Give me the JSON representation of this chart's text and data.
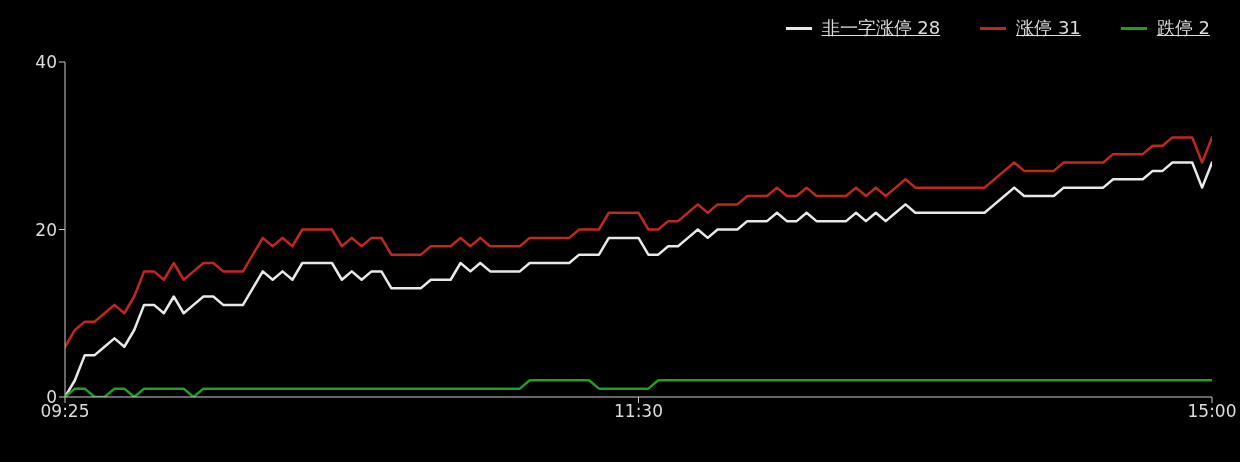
{
  "chart_data": {
    "type": "line",
    "legend": "top right",
    "marker": "none",
    "line_style": "solid",
    "ylim": [
      0,
      40
    ],
    "yticks": [
      0,
      20,
      40
    ],
    "categories": [
      "09:25",
      null,
      null,
      null,
      null,
      null,
      null,
      null,
      null,
      null,
      null,
      null,
      null,
      null,
      null,
      null,
      null,
      null,
      null,
      null,
      null,
      null,
      null,
      null,
      null,
      null,
      null,
      null,
      null,
      null,
      null,
      null,
      null,
      null,
      null,
      null,
      null,
      null,
      null,
      null,
      null,
      null,
      null,
      null,
      null,
      null,
      null,
      null,
      null,
      null,
      null,
      null,
      null,
      null,
      null,
      null,
      null,
      null,
      "11:30",
      null,
      null,
      null,
      null,
      null,
      null,
      null,
      null,
      null,
      null,
      null,
      null,
      null,
      null,
      null,
      null,
      null,
      null,
      null,
      null,
      null,
      null,
      null,
      null,
      null,
      null,
      null,
      null,
      null,
      null,
      null,
      null,
      null,
      null,
      null,
      null,
      null,
      null,
      null,
      null,
      null,
      null,
      null,
      null,
      null,
      null,
      null,
      null,
      null,
      null,
      null,
      null,
      null,
      null,
      null,
      null,
      null,
      "15:00"
    ],
    "series": [
      {
        "name": "非一字涨停 28",
        "color": "#e8e8e8",
        "values": [
          0,
          2,
          5,
          5,
          6,
          7,
          6,
          8,
          11,
          11,
          10,
          12,
          10,
          11,
          12,
          12,
          11,
          11,
          11,
          13,
          15,
          14,
          15,
          14,
          16,
          16,
          16,
          16,
          14,
          15,
          14,
          15,
          15,
          13,
          13,
          13,
          13,
          14,
          14,
          14,
          16,
          15,
          16,
          15,
          15,
          15,
          15,
          16,
          16,
          16,
          16,
          16,
          17,
          17,
          17,
          19,
          19,
          19,
          19,
          17,
          17,
          18,
          18,
          19,
          20,
          19,
          20,
          20,
          20,
          21,
          21,
          21,
          22,
          21,
          21,
          22,
          21,
          21,
          21,
          21,
          22,
          21,
          22,
          21,
          22,
          23,
          22,
          22,
          22,
          22,
          22,
          22,
          22,
          22,
          23,
          24,
          25,
          24,
          24,
          24,
          24,
          25,
          25,
          25,
          25,
          25,
          26,
          26,
          26,
          26,
          27,
          27,
          28,
          28,
          28,
          25,
          28
        ]
      },
      {
        "name": "涨停 31",
        "color": "#c0281e",
        "values": [
          6,
          8,
          9,
          9,
          10,
          11,
          10,
          12,
          15,
          15,
          14,
          16,
          14,
          15,
          16,
          16,
          15,
          15,
          15,
          17,
          19,
          18,
          19,
          18,
          20,
          20,
          20,
          20,
          18,
          19,
          18,
          19,
          19,
          17,
          17,
          17,
          17,
          18,
          18,
          18,
          19,
          18,
          19,
          18,
          18,
          18,
          18,
          19,
          19,
          19,
          19,
          19,
          20,
          20,
          20,
          22,
          22,
          22,
          22,
          20,
          20,
          21,
          21,
          22,
          23,
          22,
          23,
          23,
          23,
          24,
          24,
          24,
          25,
          24,
          24,
          25,
          24,
          24,
          24,
          24,
          25,
          24,
          25,
          24,
          25,
          26,
          25,
          25,
          25,
          25,
          25,
          25,
          25,
          25,
          26,
          27,
          28,
          27,
          27,
          27,
          27,
          28,
          28,
          28,
          28,
          28,
          29,
          29,
          29,
          29,
          30,
          30,
          31,
          31,
          31,
          28,
          31
        ]
      },
      {
        "name": "跌停 2",
        "color": "#1fa01f",
        "values": [
          0,
          1,
          1,
          0,
          0,
          1,
          1,
          0,
          1,
          1,
          1,
          1,
          1,
          0,
          1,
          1,
          1,
          1,
          1,
          1,
          1,
          1,
          1,
          1,
          1,
          1,
          1,
          1,
          1,
          1,
          1,
          1,
          1,
          1,
          1,
          1,
          1,
          1,
          1,
          1,
          1,
          1,
          1,
          1,
          1,
          1,
          1,
          2,
          2,
          2,
          2,
          2,
          2,
          2,
          1,
          1,
          1,
          1,
          1,
          1,
          2,
          2,
          2,
          2,
          2,
          2,
          2,
          2,
          2,
          2,
          2,
          2,
          2,
          2,
          2,
          2,
          2,
          2,
          2,
          2,
          2,
          2,
          2,
          2,
          2,
          2,
          2,
          2,
          2,
          2,
          2,
          2,
          2,
          2,
          2,
          2,
          2,
          2,
          2,
          2,
          2,
          2,
          2,
          2,
          2,
          2,
          2,
          2,
          2,
          2,
          2,
          2,
          2,
          2,
          2,
          2,
          2
        ]
      }
    ]
  }
}
